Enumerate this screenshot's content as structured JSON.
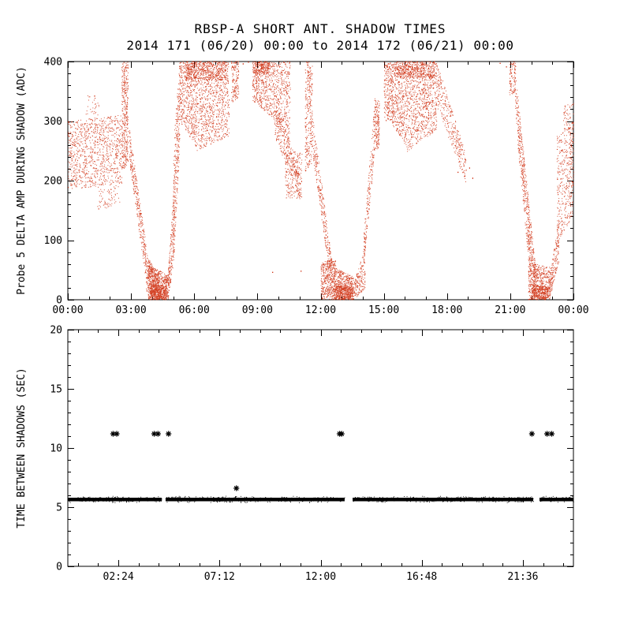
{
  "title": {
    "line1": "RBSP-A SHORT ANT. SHADOW TIMES",
    "line2": "2014 171 (06/20) 00:00 to 2014 172 (06/21) 00:00"
  },
  "colors": {
    "background": "#ffffff",
    "axis": "#000000",
    "top_points": "#cc2200",
    "bottom_points": "#000000"
  },
  "chart_data": [
    {
      "type": "scatter",
      "panel": "top",
      "title": "RBSP-A SHORT ANT. SHADOW TIMES",
      "subtitle": "2014 171 (06/20) 00:00 to 2014 172 (06/21) 00:00",
      "xlabel": "",
      "ylabel": "Probe 5 DELTA AMP DURING SHADOW (ADC)",
      "xlim": [
        0,
        24
      ],
      "ylim": [
        0,
        400
      ],
      "x_ticks": {
        "values": [
          0,
          3,
          6,
          9,
          12,
          15,
          18,
          21,
          24
        ],
        "labels": [
          "00:00",
          "03:00",
          "06:00",
          "09:00",
          "12:00",
          "15:00",
          "18:00",
          "21:00",
          "00:00"
        ]
      },
      "y_ticks": {
        "values": [
          0,
          100,
          200,
          300,
          400
        ],
        "labels": [
          "0",
          "100",
          "200",
          "300",
          "400"
        ]
      },
      "x_minor_step": 1,
      "x_minor_anchor": 0,
      "y_minor_step": 20,
      "grid": false,
      "point_color": "#cc2200",
      "clusters_format": [
        "x_start_h",
        "x_end_h",
        "y_bottom_at_start",
        "y_top_at_start",
        "y_bottom_at_end",
        "y_top_at_end",
        "n_points"
      ],
      "clusters": [
        [
          0.0,
          2.55,
          185,
          300,
          195,
          310,
          1000
        ],
        [
          1.4,
          2.45,
          150,
          190,
          160,
          195,
          70
        ],
        [
          0.85,
          1.5,
          310,
          345,
          310,
          340,
          30
        ],
        [
          2.55,
          2.85,
          215,
          400,
          230,
          400,
          380
        ],
        [
          2.9,
          3.7,
          235,
          290,
          30,
          95,
          320
        ],
        [
          3.7,
          4.3,
          15,
          80,
          0,
          35,
          280
        ],
        [
          3.8,
          4.75,
          0,
          58,
          0,
          42,
          520
        ],
        [
          3.9,
          4.7,
          0,
          26,
          0,
          22,
          380
        ],
        [
          4.75,
          5.05,
          0,
          45,
          70,
          210,
          220
        ],
        [
          5.0,
          5.3,
          55,
          260,
          250,
          400,
          300
        ],
        [
          5.3,
          6.1,
          300,
          400,
          255,
          400,
          550
        ],
        [
          6.1,
          7.65,
          250,
          400,
          275,
          400,
          850
        ],
        [
          5.6,
          7.5,
          368,
          400,
          368,
          400,
          420
        ],
        [
          7.75,
          8.1,
          330,
          400,
          340,
          400,
          150
        ],
        [
          8.75,
          9.7,
          335,
          400,
          305,
          400,
          420
        ],
        [
          8.85,
          9.6,
          378,
          400,
          378,
          400,
          180
        ],
        [
          9.7,
          10.55,
          305,
          400,
          250,
          400,
          420
        ],
        [
          9.8,
          11.05,
          275,
          335,
          162,
          215,
          260
        ],
        [
          10.3,
          11.1,
          170,
          260,
          170,
          245,
          220
        ],
        [
          11.25,
          11.6,
          215,
          400,
          230,
          400,
          300
        ],
        [
          11.6,
          12.55,
          245,
          310,
          8,
          60,
          320
        ],
        [
          12.0,
          12.7,
          0,
          62,
          0,
          70,
          420
        ],
        [
          12.6,
          13.55,
          0,
          55,
          0,
          38,
          480
        ],
        [
          12.7,
          13.5,
          0,
          24,
          0,
          20,
          330
        ],
        [
          13.55,
          14.1,
          0,
          28,
          18,
          88,
          170
        ],
        [
          14.0,
          14.55,
          40,
          95,
          245,
          330,
          210
        ],
        [
          14.55,
          14.78,
          252,
          338,
          255,
          335,
          160
        ],
        [
          15.0,
          15.28,
          298,
          400,
          305,
          400,
          170
        ],
        [
          15.28,
          16.1,
          300,
          400,
          255,
          400,
          500
        ],
        [
          16.1,
          17.5,
          248,
          400,
          285,
          400,
          780
        ],
        [
          15.5,
          17.4,
          372,
          400,
          372,
          400,
          420
        ],
        [
          17.5,
          18.9,
          325,
          400,
          192,
          242,
          330
        ],
        [
          20.95,
          21.25,
          342,
          400,
          350,
          400,
          90
        ],
        [
          21.2,
          22.2,
          325,
          392,
          0,
          52,
          380
        ],
        [
          21.35,
          21.98,
          255,
          312,
          18,
          72,
          200
        ],
        [
          21.85,
          22.9,
          0,
          62,
          0,
          55,
          520
        ],
        [
          22.0,
          22.8,
          0,
          26,
          0,
          22,
          340
        ],
        [
          22.85,
          23.3,
          0,
          32,
          65,
          140,
          190
        ],
        [
          23.2,
          24.0,
          92,
          275,
          145,
          300,
          420
        ],
        [
          23.5,
          24.0,
          280,
          330,
          290,
          330,
          50
        ]
      ],
      "extra_points": [
        [
          1.25,
          342
        ],
        [
          8.3,
          396
        ],
        [
          8.55,
          399
        ],
        [
          9.7,
          46
        ],
        [
          11.05,
          48
        ],
        [
          18.5,
          214
        ],
        [
          19.05,
          221
        ],
        [
          19.2,
          204
        ],
        [
          20.5,
          397
        ],
        [
          20.8,
          391
        ]
      ]
    },
    {
      "type": "scatter",
      "panel": "bottom",
      "title": "",
      "xlabel": "",
      "ylabel": "TIME BETWEEN SHADOWS (SEC)",
      "xlim": [
        0,
        24
      ],
      "ylim": [
        0,
        20
      ],
      "x_ticks": {
        "values": [
          2.4,
          7.2,
          12.0,
          16.8,
          21.6
        ],
        "labels": [
          "02:24",
          "07:12",
          "12:00",
          "16:48",
          "21:36"
        ]
      },
      "y_ticks": {
        "values": [
          0,
          5,
          10,
          15,
          20
        ],
        "labels": [
          "0",
          "5",
          "10",
          "15",
          "20"
        ]
      },
      "x_minor_step": 0.96,
      "x_minor_anchor": 2.4,
      "y_minor_step": 1,
      "grid": false,
      "point_color": "#000000",
      "marker": "asterisk",
      "band": {
        "y_sec": 5.65,
        "thickness_sec": 0.3,
        "segments_h": [
          [
            0,
            4.45
          ],
          [
            4.64,
            13.14
          ],
          [
            13.52,
            22.09
          ],
          [
            22.39,
            24
          ]
        ]
      },
      "outliers_h_sec": [
        [
          2.15,
          11.2
        ],
        [
          2.32,
          11.2
        ],
        [
          4.1,
          11.2
        ],
        [
          4.28,
          11.2
        ],
        [
          4.78,
          11.2
        ],
        [
          12.9,
          11.2
        ],
        [
          13.0,
          11.2
        ],
        [
          22.03,
          11.2
        ],
        [
          22.75,
          11.2
        ],
        [
          22.97,
          11.2
        ],
        [
          8.0,
          6.6
        ]
      ]
    }
  ]
}
